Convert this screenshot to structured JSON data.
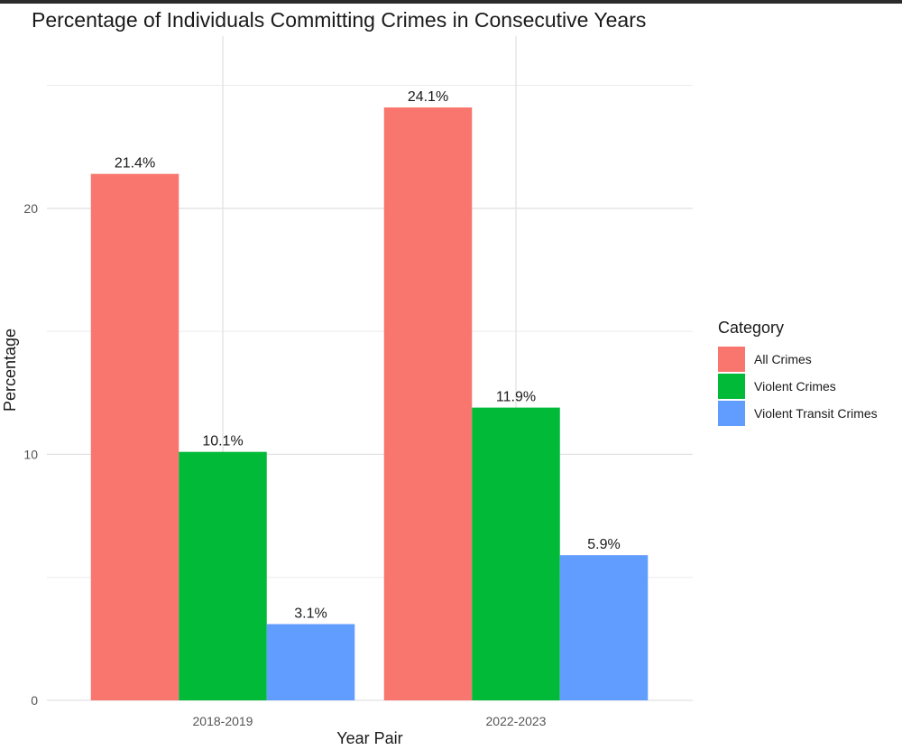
{
  "chart_data": {
    "type": "bar",
    "title": "Percentage of Individuals Committing Crimes in Consecutive Years",
    "xlabel": "Year Pair",
    "ylabel": "Percentage",
    "categories": [
      "2018-2019",
      "2022-2023"
    ],
    "series": [
      {
        "name": "All Crimes",
        "values": [
          21.4,
          24.1
        ],
        "labels": [
          "21.4%",
          "24.1%"
        ],
        "color": "#F8766D"
      },
      {
        "name": "Violent Crimes",
        "values": [
          10.1,
          11.9
        ],
        "labels": [
          "10.1%",
          "11.9%"
        ],
        "color": "#00BA38"
      },
      {
        "name": "Violent Transit Crimes",
        "values": [
          3.1,
          5.9
        ],
        "labels": [
          "3.1%",
          "5.9%"
        ],
        "color": "#619CFF"
      }
    ],
    "yticks": [
      "0",
      "10",
      "20"
    ],
    "ylim": [
      0,
      27
    ],
    "grid": true,
    "legend_title": "Category",
    "legend_position": "right"
  }
}
